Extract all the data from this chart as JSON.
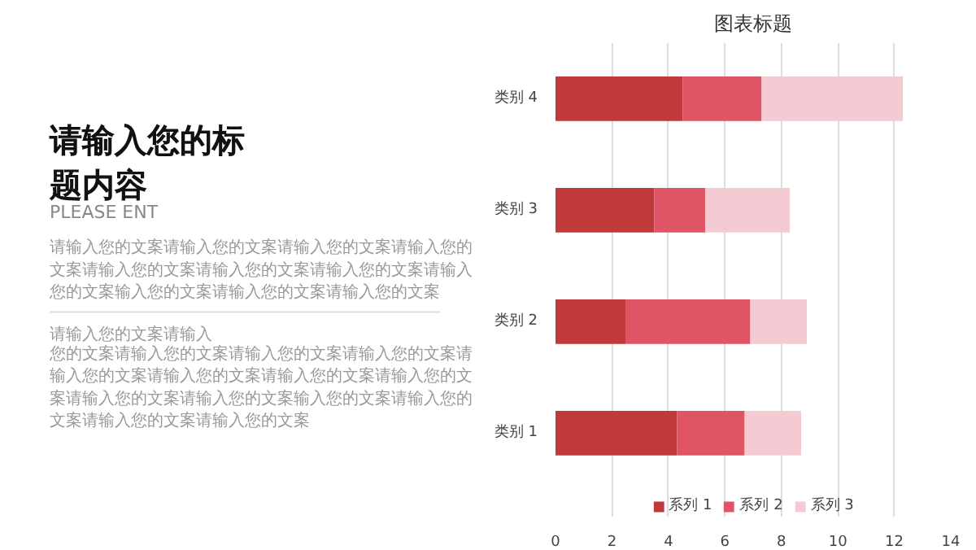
{
  "chart_data": {
    "type": "bar",
    "orientation": "horizontal",
    "stacked": true,
    "title": "图表标题",
    "categories": [
      "类别 4",
      "类别 3",
      "类别 2",
      "类别 1"
    ],
    "series": [
      {
        "name": "系列 1",
        "color": "#c0393b",
        "values": [
          4.5,
          3.5,
          2.5,
          4.3
        ]
      },
      {
        "name": "系列 2",
        "color": "#e05565",
        "values": [
          2.8,
          1.8,
          4.4,
          2.4
        ]
      },
      {
        "name": "系列 3",
        "color": "#f4cbd3",
        "values": [
          5,
          3,
          2,
          2
        ]
      }
    ],
    "xlim": [
      0,
      14
    ],
    "xticks": [
      0,
      2,
      4,
      6,
      8,
      10,
      12,
      14
    ],
    "grid": "x",
    "legend": "bottom",
    "annotations": [
      "请输入您的标题内容",
      "PLEASE ENT",
      "请输入您的文案请输入您的文案请输入您的文案请输入您的文案请输入您的文案请输入您的文案请输入您的文案请输入您的文案输入您的文案请输入您的文案请输入您的文案",
      "请输入您的文案请输入",
      "您的文案请输入您的文案请输入您的文案请输入您的文案请输入您的文案请输入您的文案请输入您的文案请输入您的文案请输入您的文案请输入您的文案输入您的文案请输入您的文案请输入您的文案请输入您的文案"
    ]
  }
}
